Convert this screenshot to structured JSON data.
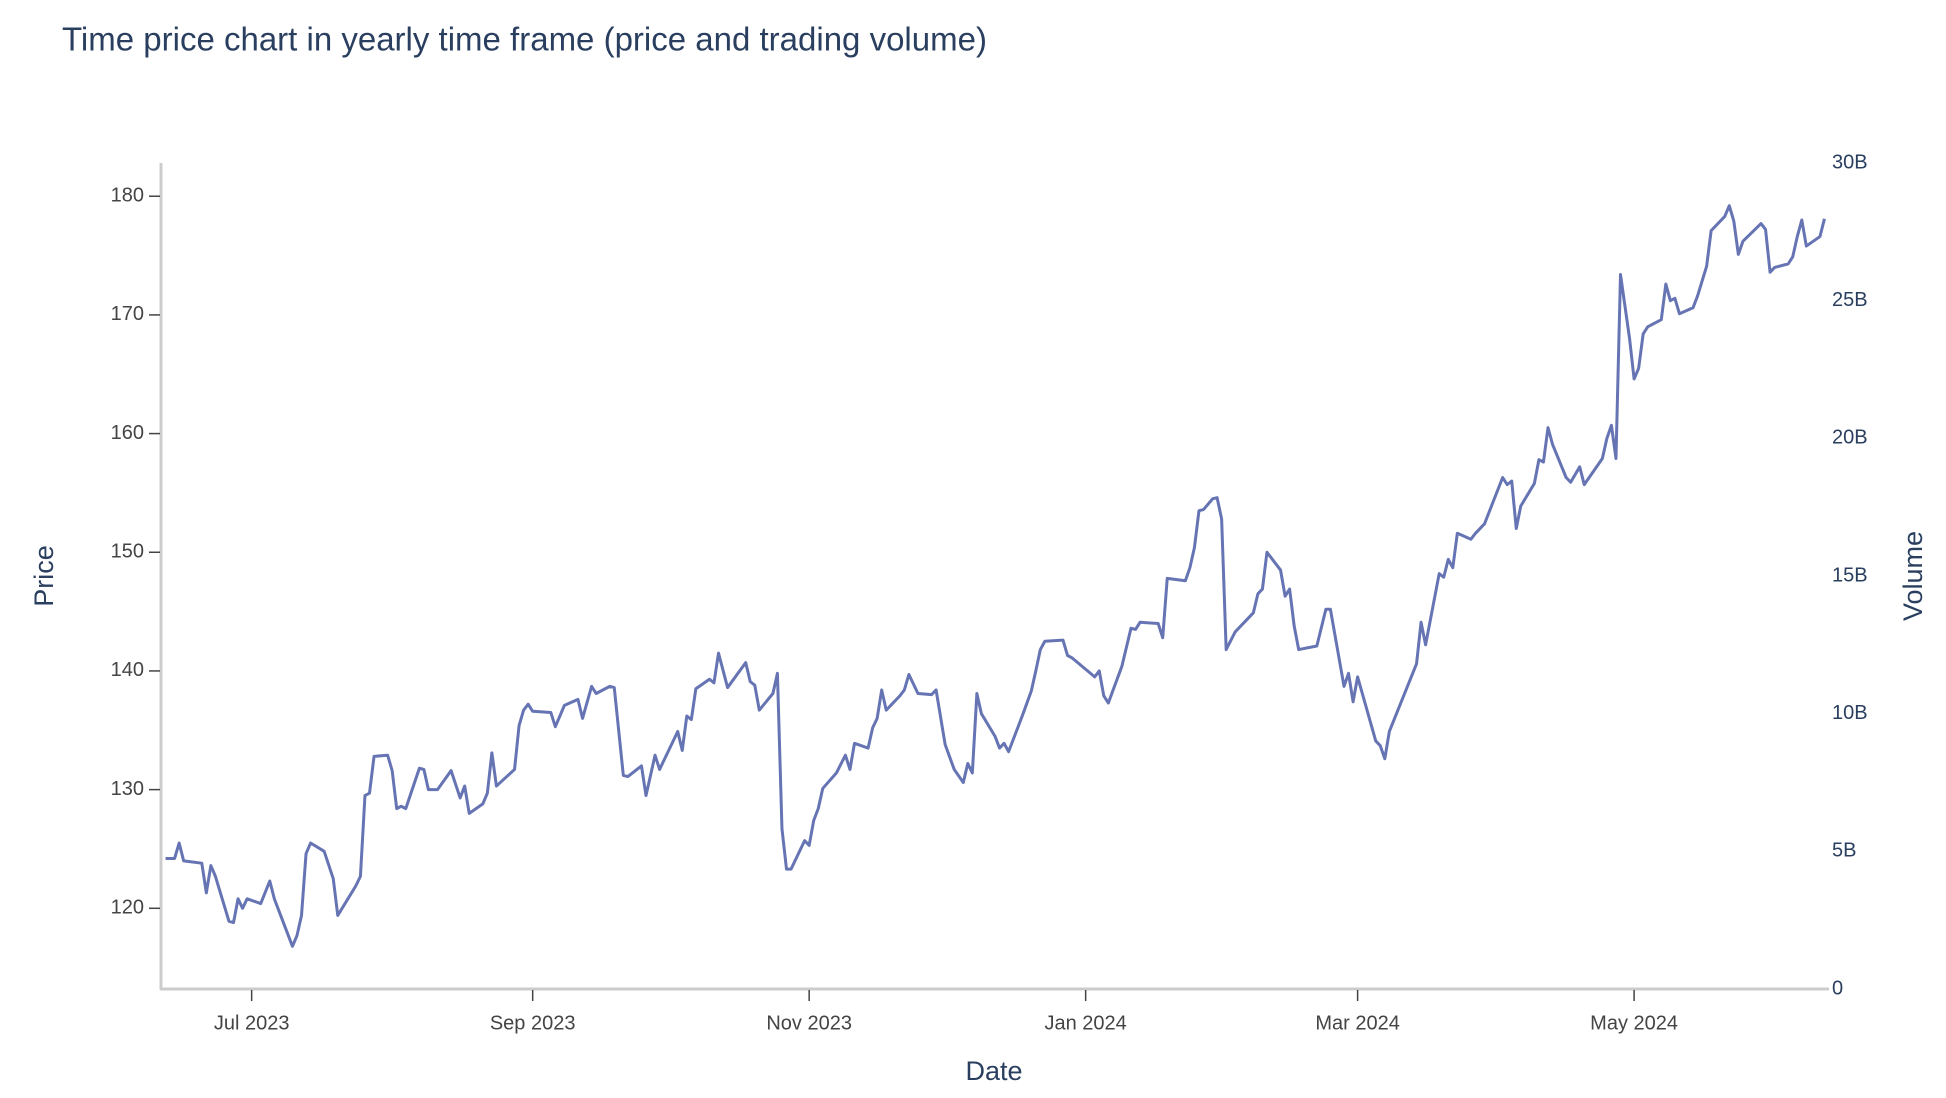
{
  "chart_data": {
    "type": "line",
    "title": "Time price chart in yearly time frame (price and trading volume)",
    "x_label": "Date",
    "y_label": "Price",
    "y2_label": "Volume",
    "xlim": [
      "2023-06-11",
      "2024-06-13"
    ],
    "xticks": [
      {
        "value": "2023-07-01",
        "label": "Jul 2023"
      },
      {
        "value": "2023-09-01",
        "label": "Sep 2023"
      },
      {
        "value": "2023-11-01",
        "label": "Nov 2023"
      },
      {
        "value": "2024-01-01",
        "label": "Jan 2024"
      },
      {
        "value": "2024-03-01",
        "label": "Mar 2024"
      },
      {
        "value": "2024-05-01",
        "label": "May 2024"
      }
    ],
    "ylim": [
      113.2,
      182.8
    ],
    "yticks": [
      120,
      130,
      140,
      150,
      160,
      170,
      180
    ],
    "y2lim": [
      0,
      30000000000
    ],
    "y2ticks": [
      0,
      {
        "value": 5000000000,
        "label": "5B"
      },
      {
        "value": 10000000000,
        "label": "10B"
      },
      {
        "value": 15000000000,
        "label": "15B"
      },
      {
        "value": 20000000000,
        "label": "20B"
      },
      {
        "value": 25000000000,
        "label": "25B"
      },
      {
        "value": 30000000000,
        "label": "30B"
      }
    ],
    "x": [
      "2023-06-12",
      "2023-06-14",
      "2023-06-15",
      "2023-06-16",
      "2023-06-20",
      "2023-06-21",
      "2023-06-22",
      "2023-06-23",
      "2023-06-26",
      "2023-06-27",
      "2023-06-28",
      "2023-06-29",
      "2023-06-30",
      "2023-07-03",
      "2023-07-05",
      "2023-07-06",
      "2023-07-10",
      "2023-07-11",
      "2023-07-12",
      "2023-07-13",
      "2023-07-14",
      "2023-07-17",
      "2023-07-19",
      "2023-07-20",
      "2023-07-24",
      "2023-07-25",
      "2023-07-26",
      "2023-07-27",
      "2023-07-28",
      "2023-07-31",
      "2023-08-01",
      "2023-08-02",
      "2023-08-03",
      "2023-08-04",
      "2023-08-07",
      "2023-08-08",
      "2023-08-09",
      "2023-08-11",
      "2023-08-14",
      "2023-08-16",
      "2023-08-17",
      "2023-08-18",
      "2023-08-21",
      "2023-08-22",
      "2023-08-23",
      "2023-08-24",
      "2023-08-28",
      "2023-08-29",
      "2023-08-30",
      "2023-08-31",
      "2023-09-01",
      "2023-09-05",
      "2023-09-06",
      "2023-09-08",
      "2023-09-11",
      "2023-09-12",
      "2023-09-14",
      "2023-09-15",
      "2023-09-18",
      "2023-09-19",
      "2023-09-21",
      "2023-09-22",
      "2023-09-25",
      "2023-09-26",
      "2023-09-28",
      "2023-09-29",
      "2023-10-03",
      "2023-10-04",
      "2023-10-05",
      "2023-10-06",
      "2023-10-07",
      "2023-10-10",
      "2023-10-11",
      "2023-10-12",
      "2023-10-14",
      "2023-10-18",
      "2023-10-19",
      "2023-10-20",
      "2023-10-21",
      "2023-10-24",
      "2023-10-25",
      "2023-10-26",
      "2023-10-27",
      "2023-10-28",
      "2023-10-31",
      "2023-11-01",
      "2023-11-02",
      "2023-11-03",
      "2023-11-04",
      "2023-11-07",
      "2023-11-09",
      "2023-11-10",
      "2023-11-11",
      "2023-11-14",
      "2023-11-15",
      "2023-11-16",
      "2023-11-17",
      "2023-11-18",
      "2023-11-21",
      "2023-11-22",
      "2023-11-23",
      "2023-11-25",
      "2023-11-28",
      "2023-11-29",
      "2023-12-01",
      "2023-12-03",
      "2023-12-05",
      "2023-12-06",
      "2023-12-07",
      "2023-12-08",
      "2023-12-09",
      "2023-12-12",
      "2023-12-13",
      "2023-12-14",
      "2023-12-15",
      "2023-12-18",
      "2023-12-20",
      "2023-12-21",
      "2023-12-22",
      "2023-12-23",
      "2023-12-27",
      "2023-12-28",
      "2023-12-29",
      "2024-01-03",
      "2024-01-04",
      "2024-01-05",
      "2024-01-06",
      "2024-01-09",
      "2024-01-11",
      "2024-01-12",
      "2024-01-13",
      "2024-01-17",
      "2024-01-18",
      "2024-01-19",
      "2024-01-23",
      "2024-01-24",
      "2024-01-25",
      "2024-01-26",
      "2024-01-27",
      "2024-01-29",
      "2024-01-30",
      "2024-01-31",
      "2024-02-01",
      "2024-02-03",
      "2024-02-07",
      "2024-02-08",
      "2024-02-09",
      "2024-02-10",
      "2024-02-13",
      "2024-02-14",
      "2024-02-15",
      "2024-02-16",
      "2024-02-17",
      "2024-02-21",
      "2024-02-23",
      "2024-02-24",
      "2024-02-27",
      "2024-02-28",
      "2024-02-29",
      "2024-03-01",
      "2024-03-05",
      "2024-03-06",
      "2024-03-07",
      "2024-03-08",
      "2024-03-14",
      "2024-03-15",
      "2024-03-16",
      "2024-03-19",
      "2024-03-20",
      "2024-03-21",
      "2024-03-22",
      "2024-03-23",
      "2024-03-26",
      "2024-03-27",
      "2024-03-29",
      "2024-04-02",
      "2024-04-03",
      "2024-04-04",
      "2024-04-05",
      "2024-04-06",
      "2024-04-09",
      "2024-04-10",
      "2024-04-11",
      "2024-04-12",
      "2024-04-13",
      "2024-04-16",
      "2024-04-17",
      "2024-04-19",
      "2024-04-20",
      "2024-04-24",
      "2024-04-25",
      "2024-04-26",
      "2024-04-27",
      "2024-04-28",
      "2024-04-30",
      "2024-05-01",
      "2024-05-02",
      "2024-05-03",
      "2024-05-04",
      "2024-05-07",
      "2024-05-08",
      "2024-05-09",
      "2024-05-10",
      "2024-05-11",
      "2024-05-14",
      "2024-05-15",
      "2024-05-17",
      "2024-05-18",
      "2024-05-21",
      "2024-05-22",
      "2024-05-23",
      "2024-05-24",
      "2024-05-25",
      "2024-05-29",
      "2024-05-30",
      "2024-05-31",
      "2024-06-01",
      "2024-06-04",
      "2024-06-05",
      "2024-06-06",
      "2024-06-07",
      "2024-06-08",
      "2024-06-11",
      "2024-06-12"
    ],
    "series": [
      {
        "color": "#6674b4",
        "values": [
          124.2,
          124.2,
          125.5,
          124.0,
          123.8,
          121.3,
          123.6,
          122.7,
          118.9,
          118.8,
          120.8,
          120.0,
          120.8,
          120.4,
          122.3,
          120.8,
          116.8,
          117.7,
          119.4,
          124.6,
          125.5,
          124.8,
          122.5,
          119.4,
          121.9,
          122.7,
          129.5,
          129.7,
          132.8,
          132.9,
          131.6,
          128.4,
          128.6,
          128.4,
          131.8,
          131.7,
          130.0,
          130.0,
          131.6,
          129.3,
          130.3,
          128.0,
          128.8,
          129.7,
          133.1,
          130.3,
          131.7,
          135.4,
          136.7,
          137.2,
          136.6,
          136.5,
          135.3,
          137.1,
          137.6,
          136.0,
          138.7,
          138.1,
          138.7,
          138.6,
          131.2,
          131.1,
          132.0,
          129.5,
          132.9,
          131.7,
          134.9,
          133.3,
          136.2,
          135.9,
          138.5,
          139.3,
          139.0,
          141.5,
          138.6,
          140.7,
          139.1,
          138.8,
          136.7,
          138.1,
          139.8,
          126.7,
          123.3,
          123.3,
          125.7,
          125.3,
          127.4,
          128.4,
          130.1,
          131.4,
          132.9,
          131.7,
          133.9,
          133.5,
          135.2,
          136.0,
          138.4,
          136.7,
          137.9,
          138.4,
          139.7,
          138.1,
          138.0,
          138.4,
          133.8,
          131.7,
          130.6,
          132.2,
          131.4,
          138.1,
          136.4,
          134.5,
          133.5,
          133.9,
          133.2,
          136.2,
          138.3,
          140.0,
          141.8,
          142.5,
          142.6,
          141.3,
          141.1,
          139.5,
          140.0,
          137.9,
          137.3,
          140.4,
          143.6,
          143.5,
          144.1,
          144.0,
          142.8,
          147.8,
          147.6,
          148.7,
          150.4,
          153.5,
          153.6,
          154.5,
          154.6,
          152.8,
          141.8,
          143.3,
          144.9,
          146.5,
          146.9,
          150.0,
          148.5,
          146.3,
          146.9,
          143.8,
          141.8,
          142.1,
          145.2,
          145.2,
          138.7,
          139.8,
          137.4,
          139.5,
          134.1,
          133.7,
          132.6,
          134.9,
          140.6,
          144.1,
          142.2,
          148.2,
          147.9,
          149.4,
          148.7,
          151.6,
          151.1,
          151.6,
          152.4,
          156.3,
          155.7,
          156.0,
          152.0,
          153.9,
          155.8,
          157.8,
          157.6,
          160.5,
          159.1,
          156.3,
          155.9,
          157.2,
          155.7,
          157.9,
          159.6,
          160.7,
          157.9,
          173.4,
          168.0,
          164.6,
          165.5,
          168.4,
          169.0,
          169.6,
          172.6,
          171.2,
          171.4,
          170.1,
          170.6,
          171.6,
          174.1,
          177.1,
          178.3,
          179.2,
          177.9,
          175.1,
          176.2,
          177.7,
          177.2,
          173.6,
          174.0,
          174.3,
          174.9,
          176.6,
          178.0,
          175.8,
          176.6,
          178.1
        ]
      }
    ]
  }
}
